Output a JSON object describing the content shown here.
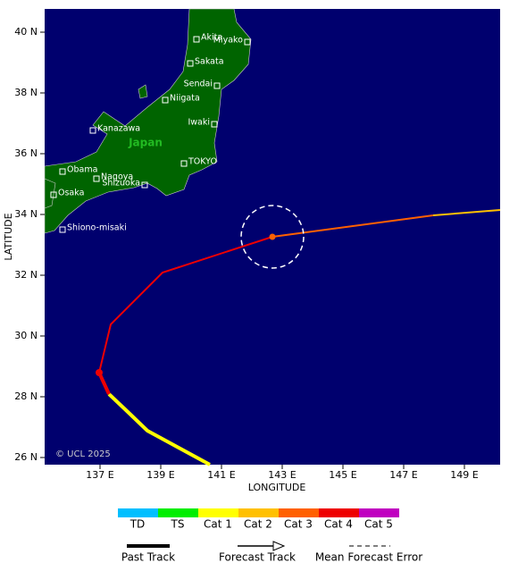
{
  "map": {
    "x_axis_title": "LONGITUDE",
    "y_axis_title": "LATITUDE",
    "x_ticks": [
      "137 E",
      "139 E",
      "141 E",
      "143 E",
      "145 E",
      "147 E",
      "149 E"
    ],
    "y_ticks": [
      "40 N",
      "38 N",
      "36 N",
      "34 N",
      "32 N",
      "30 N",
      "28 N",
      "26 N"
    ],
    "country": "Japan",
    "places": [
      "Akita",
      "Miyako",
      "Sakata",
      "Sendai",
      "Niigata",
      "Iwaki",
      "Kanazawa",
      "TOKYO",
      "Obama",
      "Nagoya",
      "Shizuoka",
      "Osaka",
      "Shiono-misaki"
    ],
    "copyright": "© UCL 2025"
  },
  "legend": {
    "categories": [
      {
        "name": "TD",
        "color": "#00bfff"
      },
      {
        "name": "TS",
        "color": "#00ee00"
      },
      {
        "name": "Cat 1",
        "color": "#ffff00"
      },
      {
        "name": "Cat 2",
        "color": "#ffc000"
      },
      {
        "name": "Cat 3",
        "color": "#ff6000"
      },
      {
        "name": "Cat 4",
        "color": "#ee0000"
      },
      {
        "name": "Cat 5",
        "color": "#c000c0"
      }
    ],
    "tracks": [
      "Past Track",
      "Forecast Track",
      "Mean Forecast Error"
    ]
  }
}
